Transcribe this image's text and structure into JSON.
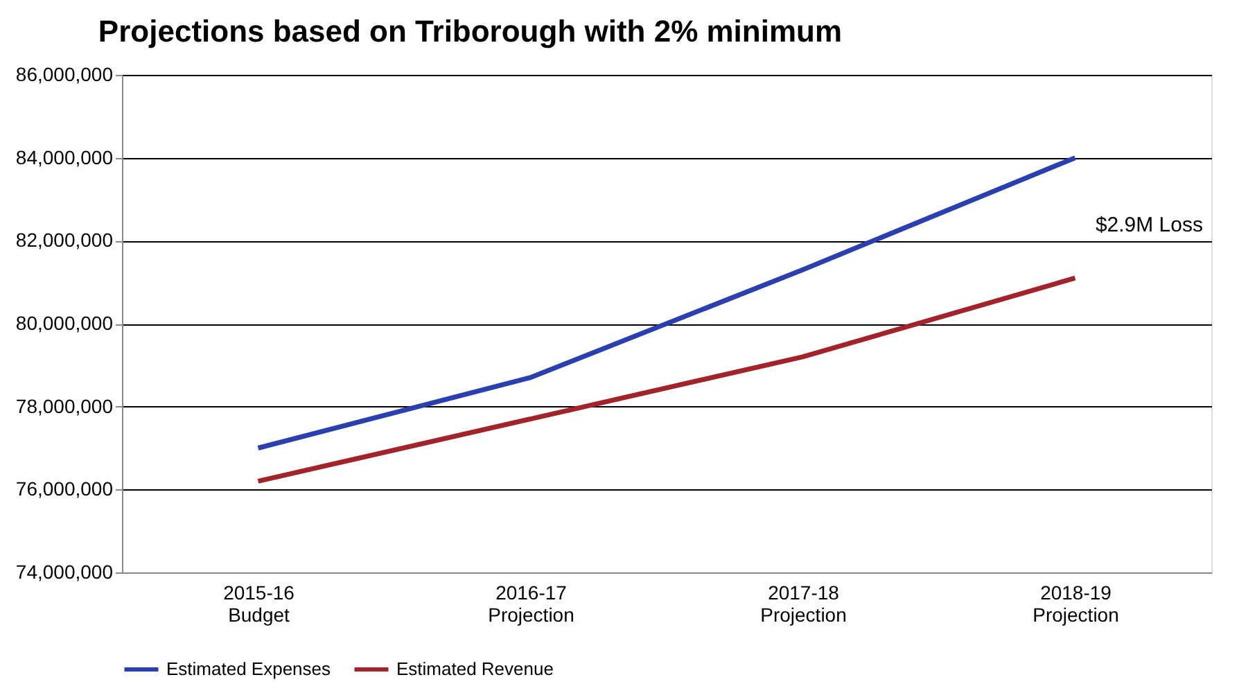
{
  "chart_data": {
    "type": "line",
    "title": "Projections based on Triborough with 2% minimum",
    "categories": [
      "2015-16\nBudget",
      "2016-17\nProjection",
      "2017-18\nProjection",
      "2018-19\nProjection"
    ],
    "series": [
      {
        "name": "Estimated Expenses",
        "color": "#2a3fb0",
        "values": [
          77000000,
          78700000,
          81300000,
          84000000
        ]
      },
      {
        "name": "Estimated Revenue",
        "color": "#a3232a",
        "values": [
          76200000,
          77700000,
          79200000,
          81100000
        ]
      }
    ],
    "ylim": [
      74000000,
      86000000
    ],
    "yticks": [
      {
        "value": 74000000,
        "label": "74,000,000"
      },
      {
        "value": 76000000,
        "label": "76,000,000"
      },
      {
        "value": 78000000,
        "label": "78,000,000"
      },
      {
        "value": 80000000,
        "label": "80,000,000"
      },
      {
        "value": 82000000,
        "label": "82,000,000"
      },
      {
        "value": 84000000,
        "label": "84,000,000"
      },
      {
        "value": 86000000,
        "label": "86,000,000"
      }
    ],
    "grid": "y",
    "legend": "bottom",
    "marker": "none",
    "line_style": "solid",
    "annotations": [
      "$2.9M Loss"
    ]
  }
}
